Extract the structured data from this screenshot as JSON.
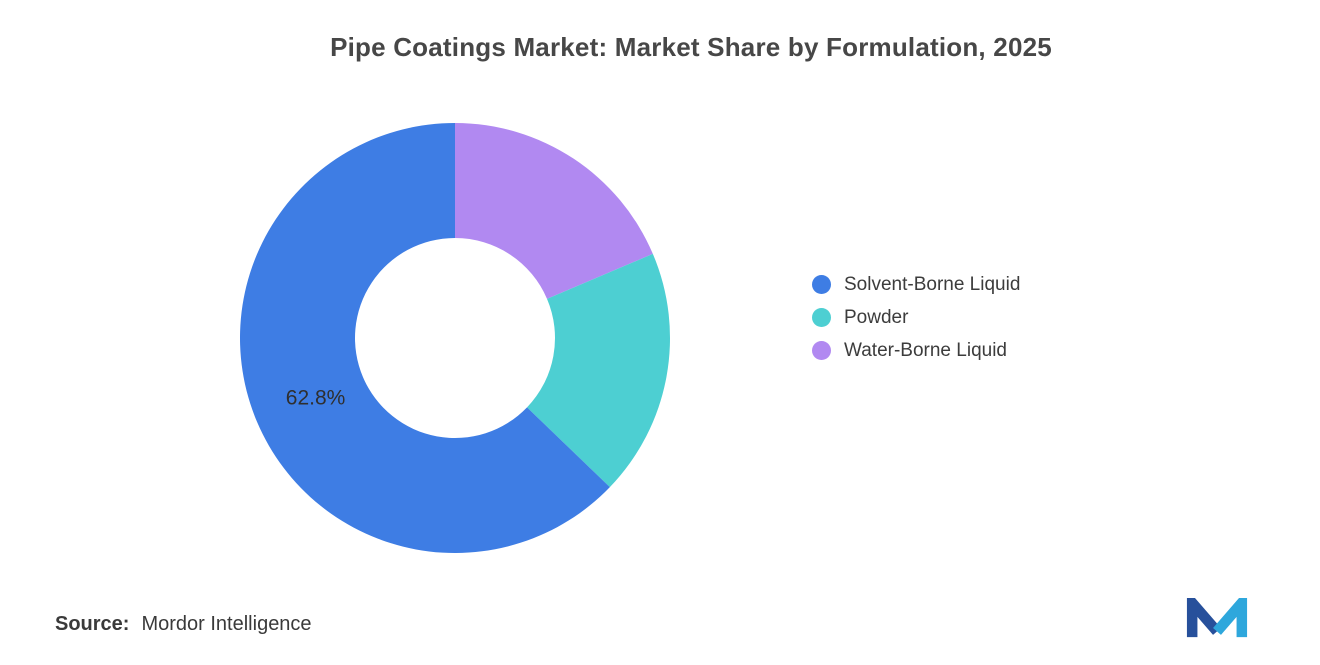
{
  "chart_data": {
    "type": "pie",
    "donut": true,
    "title": "Pipe Coatings Market: Market Share by Formulation, 2025",
    "legend_position": "right",
    "start_angle_deg": 0,
    "direction": "counterclockwise-from-top",
    "series": [
      {
        "name": "Solvent-Borne Liquid",
        "value": 62.8,
        "label": "62.8%",
        "color": "#3E7DE4"
      },
      {
        "name": "Powder",
        "value": 18.6,
        "label": "",
        "color": "#4DCFD2"
      },
      {
        "name": "Water-Borne Liquid",
        "value": 18.6,
        "label": "",
        "color": "#B189F1"
      }
    ]
  },
  "source": {
    "label": "Source:",
    "text": "Mordor Intelligence"
  },
  "logo": {
    "name": "mordor-intelligence-logo",
    "dark_color": "#27509B",
    "light_color": "#2EA7DC"
  }
}
